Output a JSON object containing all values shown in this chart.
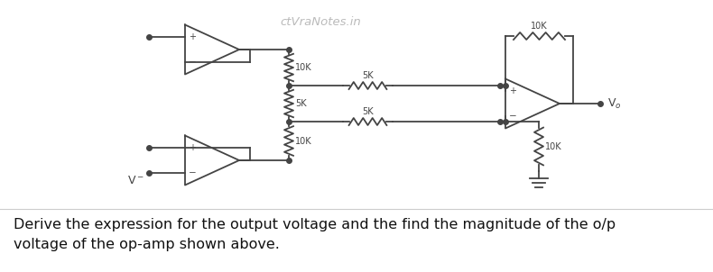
{
  "bg_color": "#ffffff",
  "watermark_text": "ctVraNotes.in",
  "watermark_color": "#bbbbbb",
  "caption_line1": "Derive the expression for the output voltage and the find the magnitude of the o/p",
  "caption_line2": "voltage of the op-amp shown above.",
  "caption_fontsize": 11.5,
  "fig_width": 7.9,
  "fig_height": 3.02,
  "dpi": 100,
  "lw": 1.3,
  "color": "#444444"
}
